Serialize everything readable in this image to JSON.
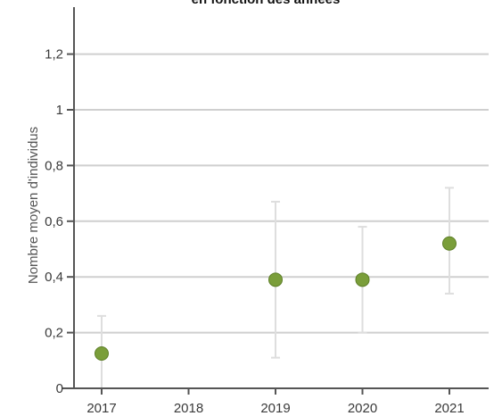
{
  "chart_data": {
    "type": "scatter",
    "title": "en fonction des années",
    "xlabel": "",
    "ylabel": "Nombre moyen d'individus",
    "categories": [
      "2017",
      "2018",
      "2019",
      "2020",
      "2021"
    ],
    "yticks": [
      "0",
      "0,2",
      "0,4",
      "0,6",
      "0,8",
      "1",
      "1,2"
    ],
    "ylim": [
      0,
      1.3
    ],
    "grid": true,
    "series": [
      {
        "points": [
          {
            "x": "2017",
            "y": 0.125,
            "low": 0,
            "high": 0.26
          },
          {
            "x": "2019",
            "y": 0.39,
            "low": 0.11,
            "high": 0.67
          },
          {
            "x": "2020",
            "y": 0.39,
            "low": 0.2,
            "high": 0.58
          },
          {
            "x": "2021",
            "y": 0.52,
            "low": 0.34,
            "high": 0.72
          }
        ]
      }
    ],
    "colors": {
      "marker": "#7a9e3a",
      "marker_stroke": "#5e7f28",
      "gridline": "#cfcfcf",
      "axis": "#555555",
      "errorbar": "#dedede"
    }
  }
}
